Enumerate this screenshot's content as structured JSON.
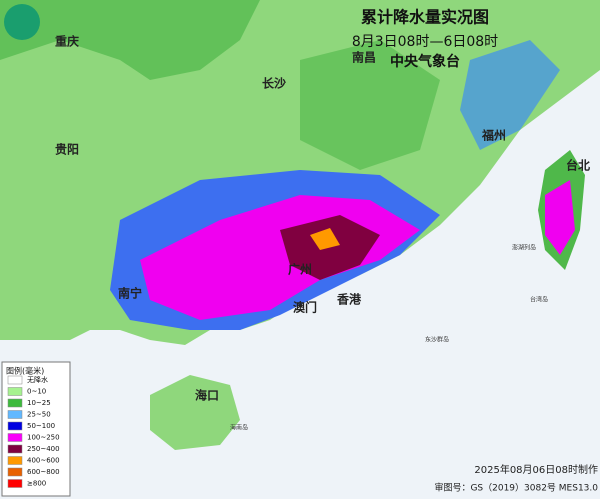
{
  "header": {
    "title": "累计降水量实况图",
    "subtitle": "8月3日08时—6日08时",
    "agency": "中央气象台"
  },
  "cities": [
    {
      "label": "重庆"
    },
    {
      "label": "长沙"
    },
    {
      "label": "南昌"
    },
    {
      "label": "贵阳"
    },
    {
      "label": "福州"
    },
    {
      "label": "台北"
    },
    {
      "label": "南宁"
    },
    {
      "label": "广州"
    },
    {
      "label": "澳门"
    },
    {
      "label": "香港"
    },
    {
      "label": "海口"
    }
  ],
  "places": [
    {
      "label": "澎湖列岛"
    },
    {
      "label": "台湾岛"
    },
    {
      "label": "东沙群岛"
    },
    {
      "label": "海南岛"
    }
  ],
  "legend": {
    "title": "图例(毫米)",
    "items": [
      {
        "label": "无降水",
        "color": "#ffffff"
      },
      {
        "label": "0~10",
        "color": "#a6f28f"
      },
      {
        "label": "10~25",
        "color": "#3dba3d"
      },
      {
        "label": "25~50",
        "color": "#61b8ff"
      },
      {
        "label": "50~100",
        "color": "#0000e1"
      },
      {
        "label": "100~250",
        "color": "#fa00fa"
      },
      {
        "label": "250~400",
        "color": "#800040"
      },
      {
        "label": "400~600",
        "color": "#ff9900"
      },
      {
        "label": "600~800",
        "color": "#e86100"
      },
      {
        "label": "≥800",
        "color": "#ff0000"
      }
    ]
  },
  "footer": {
    "made": "2025年08月06日08时制作",
    "approval": "审图号：GS（2019）3082号 MES13.0"
  }
}
